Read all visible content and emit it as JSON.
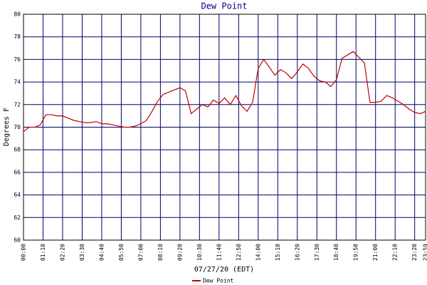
{
  "chart_data": {
    "type": "line",
    "title": "Dew Point",
    "x_label": "07/27/20 (EDT)",
    "y_label": "Degrees F",
    "x": [
      0,
      20,
      40,
      60,
      80,
      100,
      120,
      140,
      160,
      180,
      200,
      220,
      240,
      260,
      280,
      300,
      320,
      340,
      360,
      380,
      400,
      420,
      440,
      460,
      480,
      500,
      520,
      540,
      560,
      580,
      600,
      620,
      640,
      660,
      680,
      700,
      720,
      740,
      760,
      780,
      800,
      820,
      840,
      860,
      880,
      900,
      920,
      940,
      960,
      980,
      1000,
      1020,
      1040,
      1060,
      1080,
      1100,
      1120,
      1140,
      1160,
      1180,
      1200,
      1220,
      1240,
      1260,
      1280,
      1300,
      1320,
      1340,
      1360,
      1380,
      1400,
      1420,
      1439
    ],
    "series": [
      {
        "name": "Dew Point",
        "color": "#c00000",
        "values": [
          69.6,
          70.0,
          70.0,
          70.2,
          71.1,
          71.1,
          71.0,
          71.0,
          70.8,
          70.6,
          70.5,
          70.4,
          70.4,
          70.5,
          70.3,
          70.3,
          70.2,
          70.1,
          70.0,
          70.0,
          70.1,
          70.3,
          70.6,
          71.4,
          72.3,
          72.9,
          73.1,
          73.3,
          73.5,
          73.2,
          71.2,
          71.6,
          72.0,
          71.8,
          72.4,
          72.1,
          72.6,
          72.0,
          72.8,
          71.9,
          71.4,
          72.2,
          75.2,
          76.0,
          75.3,
          74.6,
          75.1,
          74.8,
          74.3,
          74.9,
          75.6,
          75.2,
          74.5,
          74.1,
          74.0,
          73.6,
          74.2,
          76.1,
          76.4,
          76.7,
          76.2,
          75.7,
          72.2,
          72.2,
          72.3,
          72.8,
          72.6,
          72.3,
          72.0,
          71.6,
          71.3,
          71.2,
          71.4
        ]
      }
    ],
    "xlim": [
      0,
      1439
    ],
    "xticks": [
      {
        "value": 0,
        "label": "00:00"
      },
      {
        "value": 70,
        "label": "01:10"
      },
      {
        "value": 140,
        "label": "02:20"
      },
      {
        "value": 210,
        "label": "03:30"
      },
      {
        "value": 280,
        "label": "04:40"
      },
      {
        "value": 350,
        "label": "05:50"
      },
      {
        "value": 420,
        "label": "07:00"
      },
      {
        "value": 490,
        "label": "08:10"
      },
      {
        "value": 560,
        "label": "09:20"
      },
      {
        "value": 630,
        "label": "10:30"
      },
      {
        "value": 700,
        "label": "11:40"
      },
      {
        "value": 770,
        "label": "12:50"
      },
      {
        "value": 840,
        "label": "14:00"
      },
      {
        "value": 910,
        "label": "15:10"
      },
      {
        "value": 980,
        "label": "16:20"
      },
      {
        "value": 1050,
        "label": "17:30"
      },
      {
        "value": 1120,
        "label": "18:40"
      },
      {
        "value": 1190,
        "label": "19:50"
      },
      {
        "value": 1260,
        "label": "21:00"
      },
      {
        "value": 1330,
        "label": "22:10"
      },
      {
        "value": 1400,
        "label": "23:20"
      },
      {
        "value": 1439,
        "label": "23:59"
      }
    ],
    "ylim": [
      60,
      80
    ],
    "yticks": [
      60,
      62,
      64,
      66,
      68,
      70,
      72,
      74,
      76,
      78,
      80
    ],
    "grid": true,
    "grid_color": "#000066"
  }
}
